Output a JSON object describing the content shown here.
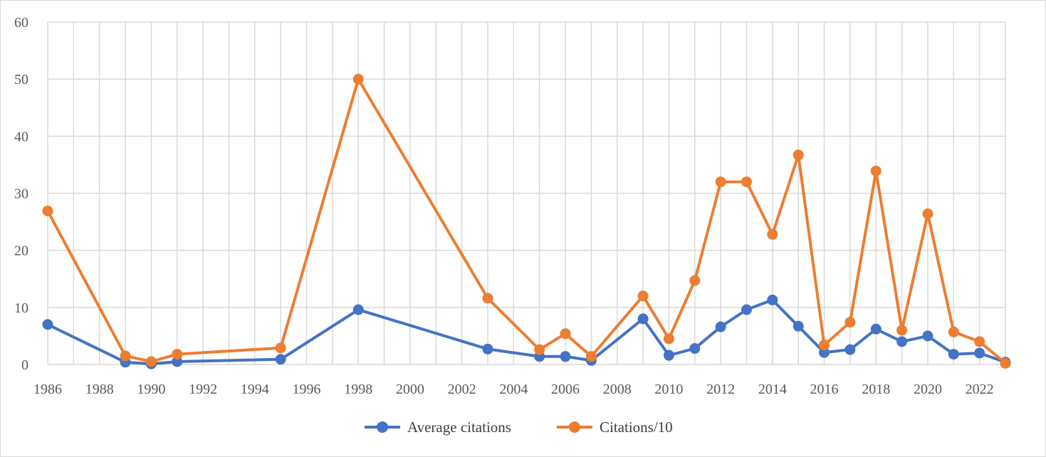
{
  "chart_data": {
    "type": "line",
    "title": "",
    "xlabel": "",
    "ylabel": "",
    "xlim": [
      1986,
      2023
    ],
    "ylim": [
      0,
      60
    ],
    "x_ticks": [
      "1986",
      "1988",
      "1990",
      "1992",
      "1994",
      "1996",
      "1998",
      "2000",
      "2002",
      "2004",
      "2006",
      "2008",
      "2010",
      "2012",
      "2014",
      "2016",
      "2018",
      "2020",
      "2022"
    ],
    "y_ticks": [
      "0",
      "10",
      "20",
      "30",
      "40",
      "50",
      "60"
    ],
    "grid": true,
    "legend_position": "bottom",
    "series": [
      {
        "name": "Average citations",
        "color": "#4472c4",
        "x": [
          1986,
          1989,
          1990,
          1991,
          1995,
          1998,
          2003,
          2005,
          2006,
          2007,
          2009,
          2010,
          2011,
          2012,
          2013,
          2014,
          2015,
          2016,
          2017,
          2018,
          2019,
          2020,
          2021,
          2022,
          2023
        ],
        "values": [
          7.0,
          0.4,
          0.1,
          0.5,
          0.9,
          9.6,
          2.7,
          1.4,
          1.4,
          0.7,
          8.0,
          1.6,
          2.8,
          6.6,
          9.6,
          11.3,
          6.7,
          2.1,
          2.6,
          6.2,
          4.0,
          5.0,
          1.8,
          2.0,
          0.4
        ]
      },
      {
        "name": "Citations/10",
        "color": "#ed7d31",
        "x": [
          1986,
          1989,
          1990,
          1991,
          1995,
          1998,
          2003,
          2005,
          2006,
          2007,
          2009,
          2010,
          2011,
          2012,
          2013,
          2014,
          2015,
          2016,
          2017,
          2018,
          2019,
          2020,
          2021,
          2022,
          2023
        ],
        "values": [
          26.9,
          1.5,
          0.5,
          1.8,
          2.9,
          50.0,
          11.6,
          2.6,
          5.4,
          1.4,
          12.0,
          4.5,
          14.7,
          32.0,
          32.0,
          22.8,
          36.7,
          3.4,
          7.4,
          33.9,
          6.0,
          26.4,
          5.7,
          4.0,
          0.2
        ]
      }
    ]
  }
}
